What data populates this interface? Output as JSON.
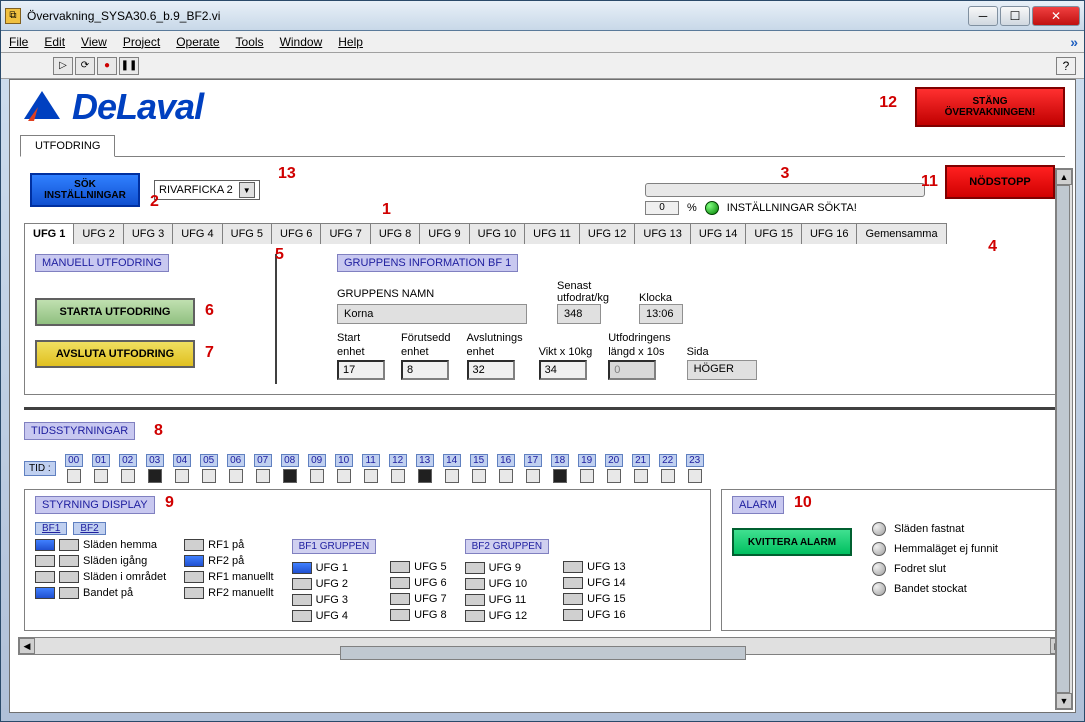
{
  "window": {
    "title": "Övervakning_SYSA30.6_b.9_BF2.vi"
  },
  "menu": [
    "File",
    "Edit",
    "View",
    "Project",
    "Operate",
    "Tools",
    "Window",
    "Help"
  ],
  "logo": {
    "text": "DeLaval",
    "color": "#0040c0",
    "accent": "#e04020"
  },
  "buttons": {
    "stop_monitor_l1": "STÄNG",
    "stop_monitor_l2": "ÖVERVAKNINGEN!",
    "seek_l1": "SÖK",
    "seek_l2": "INSTÄLLNINGAR",
    "emergency": "NÖDSTOPP",
    "start_feed": "STARTA UTFODRING",
    "end_feed": "AVSLUTA UTFODRING",
    "ack_alarm": "KVITTERA ALARM"
  },
  "dropdown": {
    "selected": "RIVARFICKA 2"
  },
  "progress": {
    "pct": "0",
    "pct_unit": "%",
    "status": "INSTÄLLNINGAR SÖKTA!"
  },
  "annotations": {
    "a1": "1",
    "a2": "2",
    "a3": "3",
    "a4": "4",
    "a5": "5",
    "a6": "6",
    "a7": "7",
    "a8": "8",
    "a9": "9",
    "a10": "10",
    "a11": "11",
    "a12": "12",
    "a13": "13"
  },
  "tab": "UTFODRING",
  "ufg_tabs": [
    "UFG 1",
    "UFG 2",
    "UFG 3",
    "UFG 4",
    "UFG 5",
    "UFG 6",
    "UFG 7",
    "UFG 8",
    "UFG 9",
    "UFG 10",
    "UFG 11",
    "UFG 12",
    "UFG 13",
    "UFG 14",
    "UFG 15",
    "UFG 16",
    "Gemensamma"
  ],
  "manual": {
    "hdr": "MANUELL UTFODRING"
  },
  "group": {
    "hdr": "GRUPPENS INFORMATION BF 1",
    "name_lbl": "GRUPPENS NAMN",
    "name": "Korna",
    "last_lbl1": "Senast",
    "last_lbl2": "utfodrat/kg",
    "last_val": "348",
    "clock_lbl": "Klocka",
    "clock_val": "13:06",
    "f1_lbl1": "Start",
    "f1_lbl2": "enhet",
    "f1_val": "17",
    "f2_lbl1": "Förutsedd",
    "f2_lbl2": "enhet",
    "f2_val": "8",
    "f3_lbl1": "Avslutnings",
    "f3_lbl2": "enhet",
    "f3_val": "32",
    "f4_lbl": "Vikt x 10kg",
    "f4_val": "34",
    "f5_lbl1": "Utfodringens",
    "f5_lbl2": "längd x 10s",
    "f5_val": "0",
    "f6_lbl": "Sida",
    "f6_val": "HÖGER"
  },
  "time": {
    "hdr": "TIDSSTYRNINGAR",
    "tid": "TID :",
    "hours": [
      "00",
      "01",
      "02",
      "03",
      "04",
      "05",
      "06",
      "07",
      "08",
      "09",
      "10",
      "11",
      "12",
      "13",
      "14",
      "15",
      "16",
      "17",
      "18",
      "19",
      "20",
      "21",
      "22",
      "23"
    ],
    "checked": [
      false,
      false,
      false,
      true,
      false,
      false,
      false,
      false,
      true,
      false,
      false,
      false,
      false,
      true,
      false,
      false,
      false,
      false,
      true,
      false,
      false,
      false,
      false,
      false
    ]
  },
  "display": {
    "hdr": "STYRNING DISPLAY",
    "bf1": "BF1",
    "bf2": "BF2",
    "rows": [
      "Släden hemma",
      "Släden igång",
      "Släden i området",
      "Bandet på"
    ],
    "rows_states": [
      [
        true,
        false
      ],
      [
        false,
        false
      ],
      [
        false,
        false
      ],
      [
        true,
        false
      ]
    ],
    "rf": [
      "RF1 på",
      "RF2 på",
      "RF1 manuellt",
      "RF2 manuellt"
    ],
    "rf_states": [
      false,
      true,
      false,
      false
    ],
    "grp1_hdr": "BF1 GRUPPEN",
    "grp2_hdr": "BF2 GRUPPEN",
    "g1": [
      "UFG 1",
      "UFG 2",
      "UFG 3",
      "UFG 4"
    ],
    "g1_states": [
      true,
      false,
      false,
      false
    ],
    "g2": [
      "UFG 5",
      "UFG 6",
      "UFG 7",
      "UFG 8"
    ],
    "g2_states": [
      false,
      false,
      false,
      false
    ],
    "g3": [
      "UFG 9",
      "UFG 10",
      "UFG 11",
      "UFG 12"
    ],
    "g3_states": [
      false,
      false,
      false,
      false
    ],
    "g4": [
      "UFG 13",
      "UFG 14",
      "UFG 15",
      "UFG 16"
    ],
    "g4_states": [
      false,
      false,
      false,
      false
    ]
  },
  "alarm": {
    "hdr": "ALARM",
    "items": [
      "Släden fastnat",
      "Hemmaläget ej funnit",
      "Fodret slut",
      "Bandet stockat"
    ]
  },
  "colors": {
    "red": "#d00000",
    "blue": "#1050d0",
    "green_btn": "#90c080",
    "yellow": "#e0c020",
    "green_led": "#008000",
    "section": "#c8c8f0",
    "accent": "#0040c0"
  }
}
